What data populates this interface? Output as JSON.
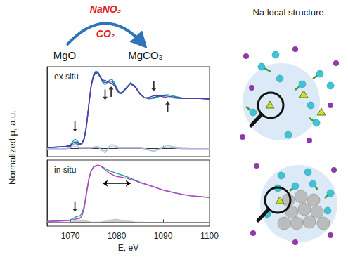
{
  "ylabel": "Normalized μ, a.u.",
  "scheme": {
    "reactant": "MgO",
    "product": "MgCO₃",
    "reagents": [
      "NaNO₃",
      "CO₂"
    ]
  },
  "structure_title": "Na local structure",
  "chart_data": [
    {
      "type": "line",
      "title": "ex situ",
      "grid": false,
      "tick_labels": false,
      "xlim": [
        1065,
        1100
      ],
      "xticks": [
        1070,
        1080,
        1090,
        1100
      ],
      "ylim": [
        -0.15,
        1.55
      ],
      "x": [
        1065,
        1067,
        1069,
        1070,
        1070.5,
        1071,
        1071.5,
        1072,
        1072.5,
        1073,
        1073.5,
        1074,
        1074.5,
        1075,
        1075.5,
        1076,
        1076.5,
        1077,
        1077.5,
        1078,
        1078.5,
        1079,
        1079.5,
        1080,
        1080.5,
        1081,
        1082,
        1083,
        1084,
        1085,
        1086,
        1087,
        1088,
        1089,
        1090,
        1091,
        1092,
        1094,
        1096,
        1098,
        1100
      ],
      "series": [
        {
          "color": "#1fa3a6",
          "line_style": "solid",
          "values": [
            0.02,
            0.03,
            0.04,
            0.07,
            0.13,
            0.18,
            0.15,
            0.1,
            0.11,
            0.2,
            0.45,
            0.85,
            1.2,
            1.4,
            1.47,
            1.45,
            1.35,
            1.25,
            1.21,
            1.25,
            1.3,
            1.31,
            1.25,
            1.15,
            1.07,
            1.06,
            1.15,
            1.25,
            1.18,
            1.05,
            0.96,
            0.94,
            0.95,
            0.98,
            1.01,
            1.02,
            1.0,
            0.96,
            0.95,
            0.95,
            0.94
          ]
        },
        {
          "color": "#2a56b0",
          "line_style": "solid",
          "values": [
            0.02,
            0.03,
            0.04,
            0.06,
            0.1,
            0.13,
            0.12,
            0.09,
            0.1,
            0.19,
            0.44,
            0.84,
            1.19,
            1.39,
            1.45,
            1.43,
            1.35,
            1.27,
            1.25,
            1.26,
            1.28,
            1.27,
            1.22,
            1.13,
            1.06,
            1.05,
            1.14,
            1.24,
            1.17,
            1.04,
            0.96,
            0.95,
            0.97,
            0.99,
            1.0,
            0.99,
            0.98,
            0.96,
            0.95,
            0.95,
            0.94
          ]
        },
        {
          "color": "#5a3aa8",
          "line_style": "solid",
          "values": [
            0.02,
            0.03,
            0.04,
            0.05,
            0.07,
            0.09,
            0.09,
            0.08,
            0.09,
            0.18,
            0.43,
            0.83,
            1.18,
            1.37,
            1.43,
            1.41,
            1.35,
            1.3,
            1.29,
            1.27,
            1.25,
            1.23,
            1.19,
            1.11,
            1.05,
            1.04,
            1.13,
            1.23,
            1.16,
            1.03,
            0.96,
            0.97,
            1.0,
            1.0,
            0.98,
            0.96,
            0.96,
            0.95,
            0.95,
            0.95,
            0.94
          ]
        },
        {
          "color": "#9fd3d6",
          "line_style": "solid",
          "values": [
            0,
            0,
            0,
            0.02,
            0.06,
            0.09,
            0.06,
            0.02,
            0.02,
            0.02,
            0.02,
            0.02,
            0.02,
            0.03,
            0.04,
            0.04,
            0,
            -0.05,
            -0.08,
            -0.02,
            0.05,
            0.08,
            0.06,
            0.04,
            0.02,
            0.02,
            0.02,
            0.02,
            0.02,
            0.02,
            0,
            -0.03,
            -0.05,
            -0.02,
            0.03,
            0.06,
            0.04,
            0.01,
            0,
            0,
            0
          ]
        },
        {
          "color": "#b9b3dc",
          "line_style": "solid",
          "values": [
            0,
            0,
            0,
            0.01,
            0.03,
            0.04,
            0.03,
            0.01,
            0.01,
            0.01,
            0.01,
            0.01,
            0.01,
            0.02,
            0.02,
            0.02,
            0,
            -0.03,
            -0.04,
            -0.01,
            0.03,
            0.04,
            0.03,
            0.02,
            0.01,
            0.01,
            0.01,
            0.01,
            0.01,
            0.01,
            0,
            -0.02,
            -0.03,
            -0.01,
            0.02,
            0.03,
            0.02,
            0,
            0,
            0,
            0
          ]
        }
      ],
      "arrows": [
        {
          "x": 1071,
          "y": 0.42,
          "direction": "down"
        },
        {
          "x": 1077.5,
          "y": 1.02,
          "direction": "down"
        },
        {
          "x": 1078.8,
          "y": 1.08,
          "direction": "up"
        },
        {
          "x": 1088,
          "y": 1.18,
          "direction": "down"
        },
        {
          "x": 1091,
          "y": 0.8,
          "direction": "up"
        }
      ]
    },
    {
      "type": "line",
      "title": "in situ",
      "grid": false,
      "tick_labels": "x",
      "xlabel": "E, eV",
      "xlim": [
        1065,
        1100
      ],
      "xticks": [
        1070,
        1080,
        1090,
        1100
      ],
      "ylim": [
        -0.1,
        1.6
      ],
      "x": [
        1065,
        1067,
        1069,
        1070,
        1070.5,
        1071,
        1071.5,
        1072,
        1072.5,
        1073,
        1073.5,
        1074,
        1074.5,
        1075,
        1075.5,
        1076,
        1076.5,
        1077,
        1077.5,
        1078,
        1078.5,
        1079,
        1079.5,
        1080,
        1080.5,
        1081,
        1082,
        1083,
        1084,
        1085,
        1086,
        1087,
        1088,
        1089,
        1090,
        1091,
        1092,
        1094,
        1096,
        1098,
        1100
      ],
      "series": [
        {
          "type": "area",
          "color": "#c4c4c4",
          "values": [
            0,
            0,
            0,
            0.01,
            0.03,
            0.05,
            0.06,
            0.06,
            0.06,
            0.06,
            0.04,
            0.02,
            0.01,
            0,
            0.01,
            0.01,
            0.01,
            0.02,
            0.03,
            0.05,
            0.06,
            0.07,
            0.08,
            0.08,
            0.07,
            0.06,
            0.04,
            0.03,
            0.01,
            0.01,
            0,
            0,
            0,
            0,
            0,
            0,
            0,
            0,
            0,
            0,
            0
          ]
        },
        {
          "color": "#22a58e",
          "line_style": "solid",
          "values": [
            0.02,
            0.03,
            0.04,
            0.06,
            0.09,
            0.13,
            0.15,
            0.16,
            0.22,
            0.42,
            0.78,
            1.12,
            1.33,
            1.42,
            1.45,
            1.46,
            1.45,
            1.42,
            1.38,
            1.35,
            1.32,
            1.3,
            1.28,
            1.26,
            1.24,
            1.22,
            1.18,
            1.13,
            1.08,
            1.03,
            0.99,
            0.95,
            0.91,
            0.87,
            0.83,
            0.8,
            0.77,
            0.72,
            0.68,
            0.66,
            0.64
          ]
        },
        {
          "color": "#c53cc8",
          "line_style": "solid",
          "values": [
            0.02,
            0.03,
            0.04,
            0.05,
            0.06,
            0.08,
            0.09,
            0.1,
            0.16,
            0.36,
            0.74,
            1.1,
            1.32,
            1.42,
            1.46,
            1.47,
            1.45,
            1.4,
            1.35,
            1.3,
            1.26,
            1.23,
            1.2,
            1.18,
            1.17,
            1.16,
            1.14,
            1.1,
            1.07,
            1.02,
            0.99,
            0.95,
            0.91,
            0.87,
            0.83,
            0.8,
            0.77,
            0.72,
            0.68,
            0.66,
            0.64
          ]
        }
      ],
      "arrows": [
        {
          "x": 1071,
          "y": 0.4,
          "direction": "down"
        },
        {
          "x": 1077,
          "x2": 1083,
          "y": 1.0,
          "direction": "horizontal"
        }
      ]
    }
  ]
}
